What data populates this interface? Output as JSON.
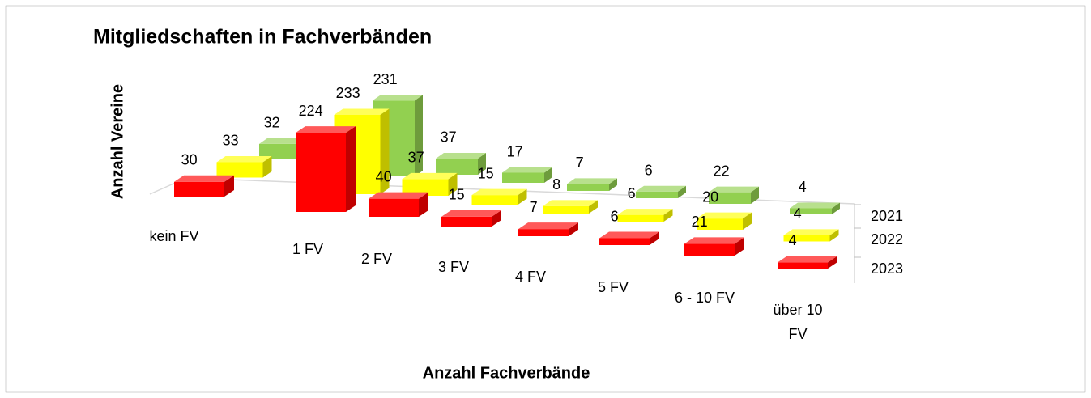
{
  "chart_data": {
    "type": "bar3d",
    "title": "Mitgliedschaften in Fachverbänden",
    "ylabel": "Anzahl Vereine",
    "xlabel": "Anzahl Fachverbände",
    "categories": [
      "kein FV",
      "1 FV",
      "2 FV",
      "3 FV",
      "4 FV",
      "5 FV",
      "6 - 10 FV",
      "über 10 FV"
    ],
    "series": [
      {
        "name": "2021",
        "color": "#92d050",
        "values": [
          32,
          231,
          37,
          17,
          7,
          6,
          22,
          4
        ]
      },
      {
        "name": "2022",
        "color": "#ffff00",
        "values": [
          33,
          233,
          37,
          15,
          8,
          6,
          20,
          4
        ]
      },
      {
        "name": "2023",
        "color": "#ff0000",
        "values": [
          30,
          224,
          40,
          15,
          7,
          6,
          21,
          4
        ]
      }
    ]
  }
}
